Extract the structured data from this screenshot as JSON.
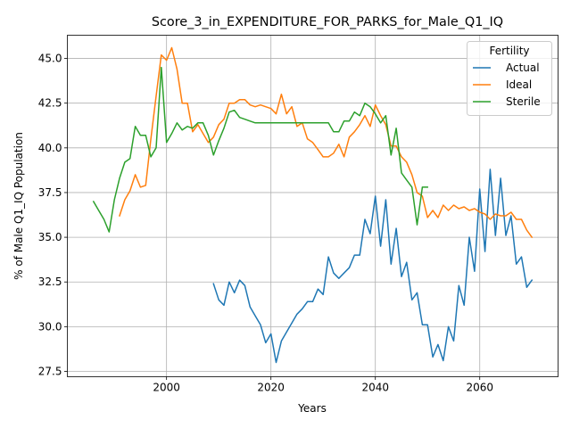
{
  "chart_data": {
    "type": "line",
    "title": "Score_3_in_EXPENDITURE_FOR_PARKS_for_Male_Q1_IQ",
    "xlabel": "Years",
    "ylabel": "% of Male Q1_IQ Population",
    "xlim": [
      1981,
      2075
    ],
    "ylim": [
      27.2,
      46.3
    ],
    "x_ticks": [
      2000,
      2020,
      2040,
      2060
    ],
    "x_tick_labels": [
      "2000",
      "2020",
      "2040",
      "2060"
    ],
    "y_ticks": [
      27.5,
      30.0,
      32.5,
      35.0,
      37.5,
      40.0,
      42.5,
      45.0
    ],
    "y_tick_labels": [
      "27.5",
      "30.0",
      "32.5",
      "35.0",
      "37.5",
      "40.0",
      "42.5",
      "45.0"
    ],
    "grid": true,
    "legend": {
      "title": "Fertility",
      "position": "top-right"
    },
    "series": [
      {
        "name": "Actual",
        "color": "#1f77b4",
        "x": [
          2009,
          2010,
          2011,
          2012,
          2013,
          2014,
          2015,
          2016,
          2017,
          2018,
          2019,
          2020,
          2021,
          2022,
          2023,
          2024,
          2025,
          2026,
          2027,
          2028,
          2029,
          2030,
          2031,
          2032,
          2033,
          2034,
          2035,
          2036,
          2037,
          2038,
          2039,
          2040,
          2041,
          2042,
          2043,
          2044,
          2045,
          2046,
          2047,
          2048,
          2049,
          2050,
          2051,
          2052,
          2053,
          2054,
          2055,
          2056,
          2057,
          2058,
          2059,
          2060,
          2061,
          2062,
          2063,
          2064,
          2065,
          2066,
          2067,
          2068,
          2069,
          2070
        ],
        "values": [
          32.4,
          31.5,
          31.2,
          32.5,
          31.9,
          32.6,
          32.3,
          31.1,
          30.6,
          30.1,
          29.1,
          29.6,
          28.0,
          29.2,
          29.7,
          30.2,
          30.7,
          31.0,
          31.4,
          31.4,
          32.1,
          31.8,
          33.9,
          33.0,
          32.7,
          33.0,
          33.3,
          34.0,
          34.0,
          36.0,
          35.2,
          37.3,
          34.5,
          37.1,
          33.5,
          35.5,
          32.8,
          33.6,
          31.5,
          31.9,
          30.1,
          30.1,
          28.3,
          29.0,
          28.1,
          30.0,
          29.2,
          32.3,
          31.2,
          35.0,
          33.1,
          37.7,
          34.2,
          38.8,
          35.1,
          38.3,
          35.1,
          36.2,
          33.5,
          33.9,
          32.2,
          32.6
        ]
      },
      {
        "name": "Ideal",
        "color": "#ff7f0e",
        "x": [
          1991,
          1992,
          1993,
          1994,
          1995,
          1996,
          1997,
          1998,
          1999,
          2000,
          2001,
          2002,
          2003,
          2004,
          2005,
          2006,
          2007,
          2008,
          2009,
          2010,
          2011,
          2012,
          2013,
          2014,
          2015,
          2016,
          2017,
          2018,
          2019,
          2020,
          2021,
          2022,
          2023,
          2024,
          2025,
          2026,
          2027,
          2028,
          2029,
          2030,
          2031,
          2032,
          2033,
          2034,
          2035,
          2036,
          2037,
          2038,
          2039,
          2040,
          2041,
          2042,
          2043,
          2044,
          2045,
          2046,
          2047,
          2048,
          2049,
          2050,
          2051,
          2052,
          2053,
          2054,
          2055,
          2056,
          2057,
          2058,
          2059,
          2060,
          2061,
          2062,
          2063,
          2064,
          2065,
          2066,
          2067,
          2068,
          2069,
          2070
        ],
        "values": [
          36.2,
          37.1,
          37.6,
          38.5,
          37.8,
          37.9,
          40.5,
          42.9,
          45.2,
          44.9,
          45.6,
          44.4,
          42.5,
          42.5,
          40.9,
          41.3,
          40.8,
          40.3,
          40.6,
          41.3,
          41.6,
          42.5,
          42.5,
          42.7,
          42.7,
          42.4,
          42.3,
          42.4,
          42.3,
          42.2,
          41.9,
          43.0,
          41.9,
          42.3,
          41.2,
          41.4,
          40.5,
          40.3,
          39.9,
          39.5,
          39.5,
          39.7,
          40.2,
          39.5,
          40.6,
          40.9,
          41.3,
          41.8,
          41.2,
          42.4,
          41.8,
          41.3,
          40.1,
          40.1,
          39.5,
          39.2,
          38.5,
          37.5,
          37.3,
          36.1,
          36.5,
          36.1,
          36.8,
          36.5,
          36.8,
          36.6,
          36.7,
          36.5,
          36.6,
          36.4,
          36.3,
          36.0,
          36.3,
          36.2,
          36.2,
          36.4,
          36.0,
          36.0,
          35.4,
          35.0
        ]
      },
      {
        "name": "Sterile",
        "color": "#2ca02c",
        "x": [
          1986,
          1987,
          1988,
          1989,
          1990,
          1991,
          1992,
          1993,
          1994,
          1995,
          1996,
          1997,
          1998,
          1999,
          2000,
          2001,
          2002,
          2003,
          2004,
          2005,
          2006,
          2007,
          2008,
          2009,
          2010,
          2011,
          2012,
          2013,
          2014,
          2015,
          2016,
          2017,
          2018,
          2019,
          2020,
          2021,
          2022,
          2023,
          2024,
          2025,
          2026,
          2027,
          2028,
          2029,
          2030,
          2031,
          2032,
          2033,
          2034,
          2035,
          2036,
          2037,
          2038,
          2039,
          2040,
          2041,
          2042,
          2043,
          2044,
          2045,
          2046,
          2047,
          2048,
          2049,
          2050
        ],
        "values": [
          37.0,
          36.5,
          36.0,
          35.3,
          37.1,
          38.3,
          39.2,
          39.4,
          41.2,
          40.7,
          40.7,
          39.5,
          40.0,
          44.5,
          40.3,
          40.8,
          41.4,
          41.0,
          41.2,
          41.1,
          41.4,
          41.4,
          40.7,
          39.6,
          40.4,
          41.1,
          42.0,
          42.1,
          41.7,
          41.6,
          41.5,
          41.4,
          41.4,
          41.4,
          41.4,
          41.4,
          41.4,
          41.4,
          41.4,
          41.4,
          41.4,
          41.4,
          41.4,
          41.4,
          41.4,
          41.4,
          40.9,
          40.9,
          41.5,
          41.5,
          42.0,
          41.8,
          42.5,
          42.3,
          41.9,
          41.4,
          41.8,
          39.6,
          41.1,
          38.6,
          38.2,
          37.8,
          35.7,
          37.8,
          37.8
        ]
      }
    ]
  }
}
